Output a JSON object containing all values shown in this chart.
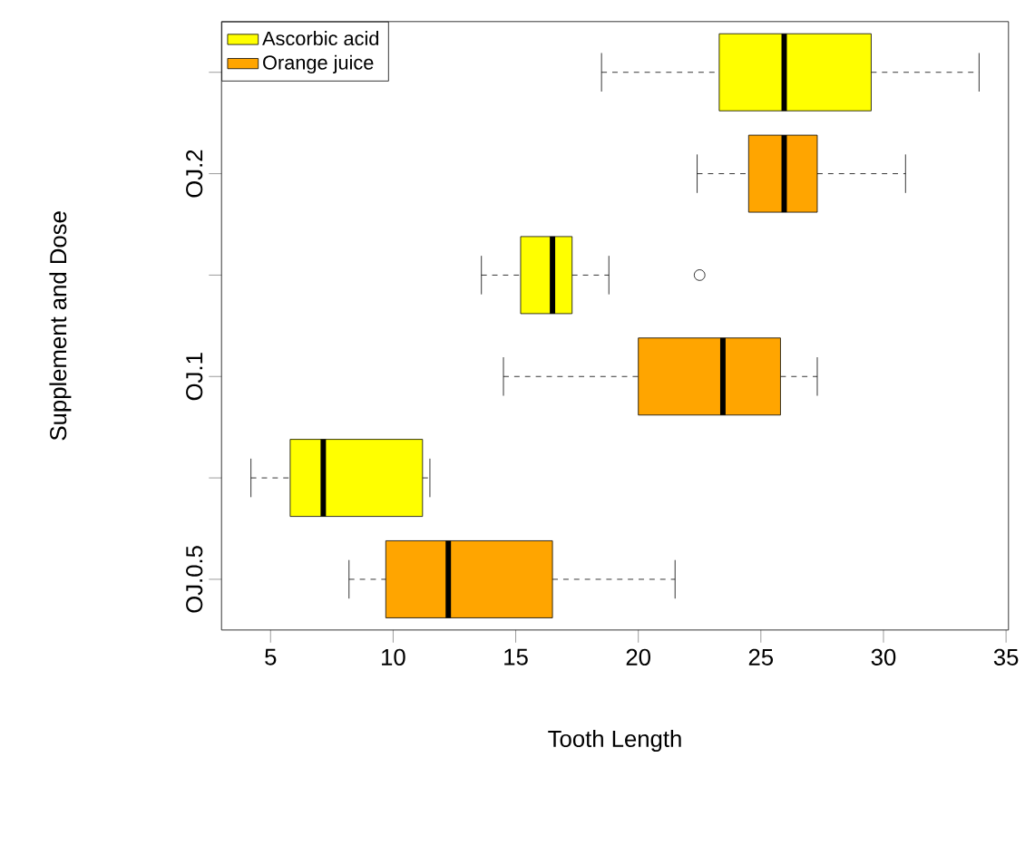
{
  "chart_data": {
    "type": "box",
    "orientation": "horizontal",
    "xlabel": "Tooth Length",
    "ylabel": "Supplement and Dose",
    "categories": [
      null,
      "OJ.2",
      null,
      "OJ.1",
      null,
      "OJ.0.5"
    ],
    "series": [
      {
        "name": "Ascorbic acid",
        "color": "#ffff00",
        "boxes": [
          {
            "low": 18.5,
            "q1": 23.3,
            "median": 25.95,
            "q3": 29.5,
            "high": 33.9
          },
          null,
          {
            "low": 13.6,
            "q1": 15.2,
            "median": 16.5,
            "q3": 17.3,
            "high": 18.8,
            "outliers": [
              22.5
            ]
          },
          null,
          {
            "low": 4.2,
            "q1": 5.8,
            "median": 7.15,
            "q3": 11.2,
            "high": 11.5
          },
          null
        ]
      },
      {
        "name": "Orange juice",
        "color": "#ffa500",
        "boxes": [
          null,
          {
            "low": 22.4,
            "q1": 24.5,
            "median": 25.95,
            "q3": 27.3,
            "high": 30.9
          },
          null,
          {
            "low": 14.5,
            "q1": 20.0,
            "median": 23.45,
            "q3": 25.8,
            "high": 27.3
          },
          null,
          {
            "low": 8.2,
            "q1": 9.7,
            "median": 12.25,
            "q3": 16.5,
            "high": 21.5
          }
        ]
      }
    ],
    "xlim": [
      3.0,
      35.1
    ],
    "xticks": [
      5,
      10,
      15,
      20,
      25,
      30,
      35
    ],
    "legend": "top left"
  }
}
